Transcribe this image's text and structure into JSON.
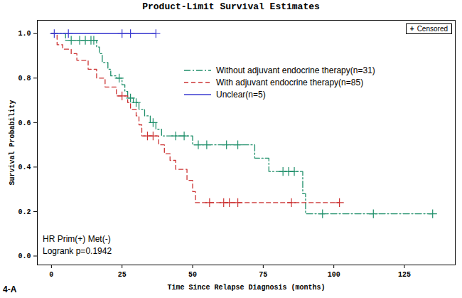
{
  "chart_data": {
    "type": "survival",
    "title": "Product-Limit Survival Estimates",
    "x_label": "Time Since Relapse Diagnosis (months)",
    "y_label": "Survival Probability",
    "xlim": [
      -5,
      143
    ],
    "ylim": [
      -0.04,
      1.06
    ],
    "xticks": [
      0,
      25,
      50,
      75,
      100,
      125
    ],
    "yticks": [
      {
        "value": 0,
        "label": "0.0"
      },
      0.2,
      0.4,
      0.6,
      0.8,
      {
        "value": 1,
        "label": "1.0"
      }
    ],
    "censor_legend": "Censored",
    "annotations": [
      "HR Prim(+) Met(-)",
      "Logrank p=0.1942"
    ],
    "panel_label": "4-A",
    "series": [
      {
        "name": "Without adjuvant endocrine therapy(n=31)",
        "color": "#1f8f6a",
        "line_style": "dashdot",
        "marker": "plus",
        "x": [
          0,
          5,
          16,
          17,
          18,
          20,
          21,
          23,
          25,
          26,
          27,
          29,
          31,
          33,
          35,
          37,
          39,
          50,
          72,
          77,
          89,
          90,
          135
        ],
        "values": [
          1,
          0.97,
          0.94,
          0.91,
          0.87,
          0.84,
          0.81,
          0.8,
          0.77,
          0.74,
          0.71,
          0.69,
          0.66,
          0.63,
          0.6,
          0.57,
          0.54,
          0.5,
          0.44,
          0.38,
          0.28,
          0.19,
          0.19
        ],
        "censored_x": [
          7,
          10,
          12,
          14,
          15,
          24,
          28,
          30,
          36,
          44,
          47,
          52,
          55,
          62,
          66,
          82,
          84,
          86,
          96,
          114,
          135
        ],
        "censored_values": [
          0.97,
          0.97,
          0.97,
          0.97,
          0.97,
          0.8,
          0.71,
          0.69,
          0.6,
          0.54,
          0.54,
          0.5,
          0.5,
          0.5,
          0.5,
          0.38,
          0.38,
          0.38,
          0.19,
          0.19,
          0.19
        ]
      },
      {
        "name": "With adjuvant endocrine therapy(n=85)",
        "color": "#cc3333",
        "line_style": "dashed",
        "marker": "plus",
        "x": [
          0,
          2,
          4,
          7,
          9,
          13,
          16,
          19,
          23,
          27,
          28,
          30,
          31,
          32,
          38,
          40,
          42,
          44,
          48,
          50,
          51,
          102
        ],
        "values": [
          1,
          0.95,
          0.93,
          0.91,
          0.88,
          0.84,
          0.8,
          0.76,
          0.72,
          0.69,
          0.66,
          0.63,
          0.59,
          0.54,
          0.5,
          0.46,
          0.43,
          0.39,
          0.34,
          0.29,
          0.24,
          0.24
        ],
        "censored_x": [
          25,
          34,
          36,
          56,
          61,
          63,
          66,
          85,
          102
        ],
        "censored_values": [
          0.72,
          0.54,
          0.54,
          0.24,
          0.24,
          0.24,
          0.24,
          0.24,
          0.24
        ]
      },
      {
        "name": "Unclear(n=5)",
        "color": "#3b3bd0",
        "line_style": "solid",
        "marker": "plus",
        "x": [
          0,
          37
        ],
        "values": [
          1,
          1
        ],
        "censored_x": [
          1,
          6,
          25,
          28,
          37
        ],
        "censored_values": [
          1,
          1,
          1,
          1,
          1
        ]
      }
    ]
  }
}
